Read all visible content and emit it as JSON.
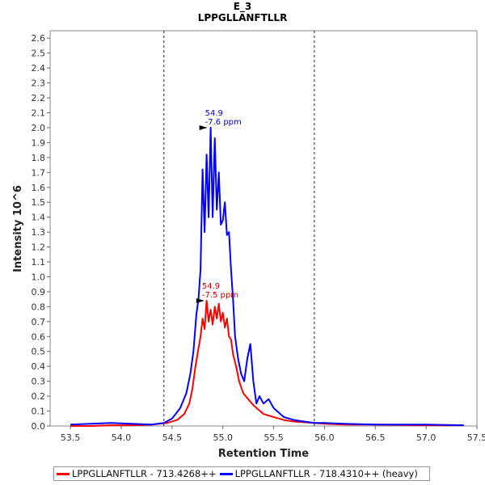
{
  "chart_data": {
    "type": "line",
    "title": "E_3",
    "subtitle": "LPPGLLANFTLLR",
    "xlabel": "Retention Time",
    "ylabel": "Intensity 10^6",
    "xlim": [
      53.3,
      57.5
    ],
    "ylim": [
      0,
      2.65
    ],
    "x_ticks": [
      "53.5",
      "54.0",
      "54.5",
      "55.0",
      "55.5",
      "56.0",
      "56.5",
      "57.0",
      "57.5"
    ],
    "x_tick_values": [
      53.5,
      54.0,
      54.5,
      55.0,
      55.5,
      56.0,
      56.5,
      57.0,
      57.5
    ],
    "y_ticks": [
      "0.0",
      "0.1",
      "0.2",
      "0.3",
      "0.4",
      "0.5",
      "0.6",
      "0.7",
      "0.8",
      "0.9",
      "1.0",
      "1.1",
      "1.2",
      "1.3",
      "1.4",
      "1.5",
      "1.6",
      "1.7",
      "1.8",
      "1.9",
      "2.0",
      "2.1",
      "2.2",
      "2.3",
      "2.4",
      "2.5",
      "2.6"
    ],
    "y_tick_values": [
      0.0,
      0.1,
      0.2,
      0.3,
      0.4,
      0.5,
      0.6,
      0.7,
      0.8,
      0.9,
      1.0,
      1.1,
      1.2,
      1.3,
      1.4,
      1.5,
      1.6,
      1.7,
      1.8,
      1.9,
      2.0,
      2.1,
      2.2,
      2.3,
      2.4,
      2.5,
      2.6
    ],
    "integration_bounds": [
      54.42,
      55.9
    ],
    "series": [
      {
        "name": "LPPGLLANFTLLR - 713.4268++",
        "color": "#ff0000",
        "x": [
          53.5,
          53.7,
          53.9,
          54.1,
          54.3,
          54.45,
          54.55,
          54.62,
          54.67,
          54.7,
          54.73,
          54.76,
          54.78,
          54.8,
          54.82,
          54.84,
          54.86,
          54.88,
          54.9,
          54.92,
          54.94,
          54.96,
          54.98,
          55.0,
          55.02,
          55.04,
          55.06,
          55.08,
          55.1,
          55.13,
          55.16,
          55.2,
          55.25,
          55.3,
          55.35,
          55.4,
          55.5,
          55.6,
          55.7,
          55.8,
          55.9,
          56.0,
          56.2,
          56.5,
          57.0,
          57.37
        ],
        "y": [
          0.0,
          0.0,
          0.005,
          0.005,
          0.01,
          0.02,
          0.04,
          0.08,
          0.15,
          0.25,
          0.4,
          0.52,
          0.6,
          0.72,
          0.65,
          0.84,
          0.7,
          0.78,
          0.68,
          0.8,
          0.72,
          0.82,
          0.7,
          0.76,
          0.66,
          0.72,
          0.6,
          0.58,
          0.48,
          0.4,
          0.3,
          0.22,
          0.18,
          0.14,
          0.11,
          0.08,
          0.06,
          0.04,
          0.03,
          0.025,
          0.02,
          0.015,
          0.01,
          0.01,
          0.005,
          0.005
        ]
      },
      {
        "name": "LPPGLLANFTLLR - 718.4310++ (heavy)",
        "color": "#0000ff",
        "x": [
          53.5,
          53.7,
          53.9,
          54.1,
          54.3,
          54.42,
          54.5,
          54.58,
          54.64,
          54.68,
          54.71,
          54.74,
          54.76,
          54.78,
          54.8,
          54.82,
          54.84,
          54.86,
          54.88,
          54.9,
          54.92,
          54.94,
          54.96,
          54.98,
          55.0,
          55.02,
          55.04,
          55.06,
          55.08,
          55.1,
          55.12,
          55.15,
          55.18,
          55.21,
          55.24,
          55.27,
          55.3,
          55.33,
          55.36,
          55.4,
          55.45,
          55.5,
          55.6,
          55.7,
          55.8,
          55.9,
          56.0,
          56.2,
          56.5,
          57.0,
          57.37
        ],
        "y": [
          0.01,
          0.015,
          0.02,
          0.015,
          0.01,
          0.02,
          0.05,
          0.12,
          0.22,
          0.35,
          0.5,
          0.75,
          0.85,
          1.05,
          1.72,
          1.3,
          1.82,
          1.4,
          2.0,
          1.4,
          1.93,
          1.45,
          1.7,
          1.35,
          1.38,
          1.5,
          1.28,
          1.3,
          1.05,
          0.85,
          0.6,
          0.45,
          0.35,
          0.3,
          0.45,
          0.55,
          0.3,
          0.15,
          0.2,
          0.15,
          0.18,
          0.12,
          0.06,
          0.04,
          0.03,
          0.02,
          0.02,
          0.015,
          0.01,
          0.01,
          0.005
        ]
      }
    ],
    "annotations": [
      {
        "series": 0,
        "x": 54.85,
        "y": 0.84,
        "label1": "54.9",
        "label2": "-7.5 ppm",
        "color": "#cc0000"
      },
      {
        "series": 1,
        "x": 54.88,
        "y": 2.0,
        "label1": "54.9",
        "label2": "-7.6 ppm",
        "color": "#0000cc"
      }
    ],
    "legend": "bottom",
    "grid": false
  }
}
